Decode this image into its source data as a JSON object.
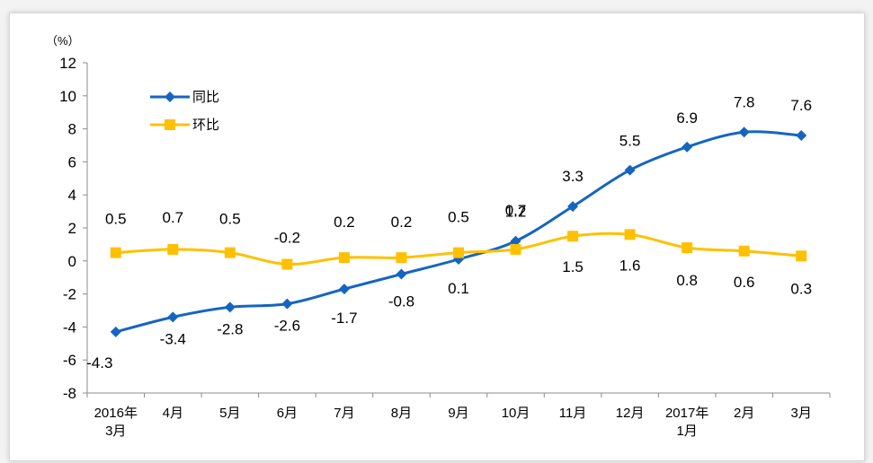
{
  "chart_data": {
    "type": "line",
    "unit_label": "（%）",
    "categories": [
      [
        "2016年",
        "3月"
      ],
      [
        "4月"
      ],
      [
        "5月"
      ],
      [
        "6月"
      ],
      [
        "7月"
      ],
      [
        "8月"
      ],
      [
        "9月"
      ],
      [
        "10月"
      ],
      [
        "11月"
      ],
      [
        "12月"
      ],
      [
        "2017年",
        "1月"
      ],
      [
        "2月"
      ],
      [
        "3月"
      ]
    ],
    "ylim": [
      -8,
      12
    ],
    "yticks": [
      -8,
      -6,
      -4,
      -2,
      0,
      2,
      4,
      6,
      8,
      10,
      12
    ],
    "grid": false,
    "legend_position": "top-left",
    "series": [
      {
        "name": "同比",
        "color": "#1565c0",
        "marker": "diamond",
        "values": [
          -4.3,
          -3.4,
          -2.8,
          -2.6,
          -1.7,
          -0.8,
          0.1,
          1.2,
          3.3,
          5.5,
          6.9,
          7.8,
          7.6
        ],
        "labels": [
          "-4.3",
          "-3.4",
          "-2.8",
          "-2.6",
          "-1.7",
          "-0.8",
          "0.1",
          "1.2",
          "3.3",
          "5.5",
          "6.9",
          "7.8",
          "7.6"
        ]
      },
      {
        "name": "环比",
        "color": "#ffc000",
        "marker": "square",
        "values": [
          0.5,
          0.7,
          0.5,
          -0.2,
          0.2,
          0.2,
          0.5,
          0.7,
          1.5,
          1.6,
          0.8,
          0.6,
          0.3
        ],
        "labels": [
          "0.5",
          "0.7",
          "0.5",
          "-0.2",
          "0.2",
          "0.2",
          "0.5",
          "0.7",
          "1.5",
          "1.6",
          "0.8",
          "0.6",
          "0.3"
        ]
      }
    ]
  }
}
